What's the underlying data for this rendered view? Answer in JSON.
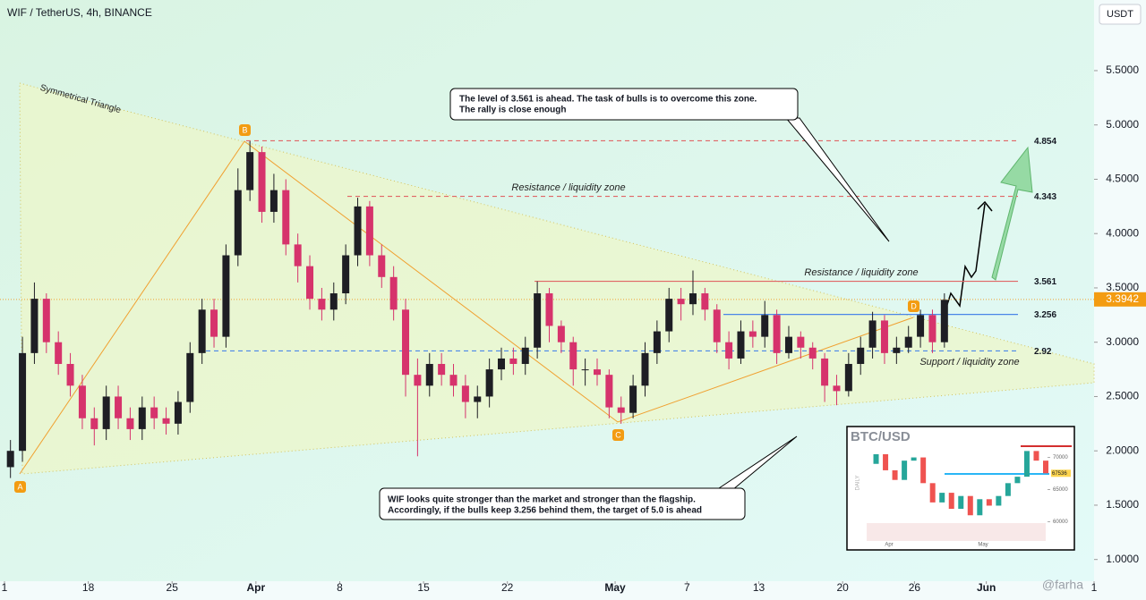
{
  "chart_data": {
    "type": "candlestick",
    "title": "WIF / TetherUS, 4h, BINANCE",
    "currency": "USDT",
    "current_price": 3.3942,
    "x": [
      "Mar 11",
      "Mar 12",
      "Mar 13",
      "Mar 14",
      "Mar 15",
      "Mar 16",
      "Mar 17",
      "Mar 18",
      "Mar 19",
      "Mar 20",
      "Mar 21",
      "Mar 22",
      "Mar 23",
      "Mar 24",
      "Mar 25",
      "Mar 26",
      "Mar 27",
      "Mar 28",
      "Mar 29",
      "Mar 30",
      "Mar 31",
      "Apr 1",
      "Apr 2",
      "Apr 3",
      "Apr 4",
      "Apr 5",
      "Apr 6",
      "Apr 7",
      "Apr 8",
      "Apr 9",
      "Apr 10",
      "Apr 11",
      "Apr 12",
      "Apr 13",
      "Apr 14",
      "Apr 15",
      "Apr 16",
      "Apr 17",
      "Apr 18",
      "Apr 19",
      "Apr 20",
      "Apr 21",
      "Apr 22",
      "Apr 23",
      "Apr 24",
      "Apr 25",
      "Apr 26",
      "Apr 27",
      "Apr 28",
      "Apr 29",
      "Apr 30",
      "May 1",
      "May 2",
      "May 3",
      "May 4",
      "May 5",
      "May 6",
      "May 7",
      "May 8",
      "May 9",
      "May 10",
      "May 11",
      "May 12",
      "May 13",
      "May 14",
      "May 15",
      "May 16",
      "May 17",
      "May 18",
      "May 19",
      "May 20",
      "May 21",
      "May 22",
      "May 23",
      "May 24",
      "May 25",
      "May 26",
      "May 27",
      "May 28"
    ],
    "open": [
      1.85,
      2.0,
      2.9,
      3.4,
      3.0,
      2.8,
      2.6,
      2.3,
      2.2,
      2.5,
      2.3,
      2.2,
      2.4,
      2.3,
      2.25,
      2.45,
      2.9,
      3.3,
      3.05,
      3.8,
      4.4,
      4.75,
      4.2,
      4.4,
      3.9,
      3.7,
      3.4,
      3.3,
      3.45,
      3.8,
      4.25,
      3.8,
      3.6,
      3.3,
      2.7,
      2.6,
      2.8,
      2.7,
      2.6,
      2.45,
      2.5,
      2.75,
      2.85,
      2.8,
      2.95,
      3.45,
      3.15,
      3.0,
      2.75,
      2.75,
      2.7,
      2.4,
      2.35,
      2.6,
      2.9,
      3.1,
      3.4,
      3.35,
      3.45,
      3.3,
      3.0,
      2.85,
      3.1,
      3.05,
      3.25,
      2.9,
      3.05,
      2.95,
      2.85,
      2.6,
      2.55,
      2.8,
      2.95,
      3.2,
      2.9,
      2.95,
      3.05,
      3.25,
      3.0
    ],
    "high": [
      2.1,
      3.05,
      3.55,
      3.45,
      3.1,
      2.9,
      2.7,
      2.4,
      2.6,
      2.6,
      2.4,
      2.5,
      2.5,
      2.4,
      2.55,
      3.0,
      3.4,
      3.4,
      3.9,
      4.6,
      4.85,
      4.8,
      4.55,
      4.5,
      4.0,
      3.8,
      3.5,
      3.55,
      3.9,
      4.33,
      4.3,
      3.9,
      3.7,
      3.4,
      2.85,
      2.9,
      2.9,
      2.8,
      2.7,
      2.6,
      2.85,
      2.95,
      2.95,
      3.05,
      3.56,
      3.5,
      3.2,
      3.05,
      2.85,
      2.85,
      2.75,
      2.5,
      2.7,
      3.0,
      3.2,
      3.5,
      3.5,
      3.66,
      3.5,
      3.35,
      3.1,
      3.2,
      3.2,
      3.38,
      3.3,
      3.15,
      3.1,
      3.0,
      2.9,
      2.7,
      2.9,
      3.05,
      3.28,
      3.25,
      3.05,
      3.15,
      3.3,
      3.3,
      3.45
    ],
    "low": [
      1.75,
      1.9,
      2.8,
      2.9,
      2.7,
      2.5,
      2.2,
      2.05,
      2.1,
      2.2,
      2.1,
      2.1,
      2.2,
      2.15,
      2.15,
      2.35,
      2.8,
      2.95,
      2.95,
      3.7,
      4.3,
      4.1,
      4.1,
      3.8,
      3.55,
      3.3,
      3.2,
      3.2,
      3.35,
      3.7,
      3.7,
      3.5,
      3.2,
      2.5,
      1.95,
      2.5,
      2.6,
      2.5,
      2.3,
      2.3,
      2.4,
      2.65,
      2.7,
      2.7,
      2.85,
      3.0,
      2.9,
      2.6,
      2.6,
      2.6,
      2.3,
      2.25,
      2.3,
      2.5,
      2.8,
      3.0,
      3.2,
      3.25,
      3.2,
      2.9,
      2.75,
      2.8,
      2.95,
      2.95,
      2.8,
      2.85,
      2.85,
      2.75,
      2.45,
      2.42,
      2.5,
      2.7,
      2.85,
      2.8,
      2.8,
      2.9,
      2.95,
      2.9,
      2.95
    ],
    "close": [
      2.0,
      2.9,
      3.4,
      3.0,
      2.8,
      2.6,
      2.3,
      2.2,
      2.5,
      2.3,
      2.2,
      2.4,
      2.3,
      2.25,
      2.45,
      2.9,
      3.3,
      3.05,
      3.8,
      4.4,
      4.75,
      4.2,
      4.4,
      3.9,
      3.7,
      3.4,
      3.3,
      3.45,
      3.8,
      4.25,
      3.8,
      3.6,
      3.3,
      2.7,
      2.6,
      2.8,
      2.7,
      2.6,
      2.45,
      2.5,
      2.75,
      2.85,
      2.8,
      2.95,
      3.45,
      3.15,
      3.0,
      2.75,
      2.75,
      2.7,
      2.4,
      2.35,
      2.6,
      2.9,
      3.1,
      3.4,
      3.35,
      3.45,
      3.3,
      3.0,
      2.85,
      3.1,
      3.05,
      3.25,
      2.9,
      3.05,
      2.95,
      2.85,
      2.6,
      2.55,
      2.8,
      2.95,
      3.2,
      2.9,
      2.95,
      3.05,
      3.25,
      3.0,
      3.39
    ],
    "up_color": "#1e1e24",
    "down_color": "#d6336c",
    "xlim": [
      "Mar 11",
      "Jun 10"
    ],
    "xticks": [
      {
        "value": "Mar 11",
        "label": "1"
      },
      {
        "value": "Mar 18",
        "label": "18"
      },
      {
        "value": "Mar 25",
        "label": "25"
      },
      {
        "value": "Apr 1",
        "label": "Apr"
      },
      {
        "value": "Apr 8",
        "label": "8"
      },
      {
        "value": "Apr 15",
        "label": "15"
      },
      {
        "value": "Apr 22",
        "label": "22"
      },
      {
        "value": "May 1",
        "label": "May"
      },
      {
        "value": "May 7",
        "label": "7"
      },
      {
        "value": "May 13",
        "label": "13"
      },
      {
        "value": "May 20",
        "label": "20"
      },
      {
        "value": "May 26",
        "label": "26"
      },
      {
        "value": "Jun 1",
        "label": "Jun"
      },
      {
        "value": "Jun 10",
        "label": "1"
      }
    ],
    "ylim": [
      0.8,
      6.15
    ],
    "yticks": [
      {
        "value": 1,
        "label": "1.0000"
      },
      {
        "value": 1.5,
        "label": "1.5000"
      },
      {
        "value": 2,
        "label": "2.0000"
      },
      {
        "value": 2.5,
        "label": "2.5000"
      },
      {
        "value": 3,
        "label": "3.0000"
      },
      {
        "value": 3.5,
        "label": "3.5000"
      },
      {
        "value": 4,
        "label": "4.0000"
      },
      {
        "value": 4.5,
        "label": "4.5000"
      },
      {
        "value": 5,
        "label": "5.0000"
      },
      {
        "value": 5.5,
        "label": "5.5000"
      }
    ],
    "levels": [
      {
        "value": 4.854,
        "color": "#e06666",
        "style": "dashed"
      },
      {
        "value": 4.343,
        "color": "#e06666",
        "style": "dashed"
      },
      {
        "value": 3.561,
        "color": "#e06666",
        "style": "solid"
      },
      {
        "value": 3.256,
        "color": "#4a86e8",
        "style": "solid"
      },
      {
        "value": 2.92,
        "color": "#4a86e8",
        "style": "dashed"
      }
    ],
    "annotations": {
      "pattern": "Symmetrical Triangle",
      "resistance_upper": "Resistance / liquidity zone",
      "resistance_lower": "Resistance / liquidity zone",
      "support": "Support / liquidity zone",
      "note_top": [
        "The level of 3.561 is ahead. The task of bulls is to overcome this zone.",
        "The rally is close enough"
      ],
      "note_bottom": [
        "WIF looks quite stronger than the market and stronger than the flagship.",
        "Accordingly, if the bulls keep 3.256 behind them, the target of 5.0 is ahead"
      ],
      "points": [
        "A",
        "B",
        "C",
        "D"
      ],
      "watermark": "@farha"
    },
    "inset": {
      "title": "BTC/USD",
      "axis_label": "DAILY",
      "categories": [
        "Apr",
        "May"
      ],
      "values": [
        69000,
        70500,
        68000,
        66500,
        69500,
        70000,
        66000,
        63000,
        64500,
        62000,
        64000,
        61000,
        63500,
        62500,
        64000,
        66000,
        67000,
        71000,
        69500,
        67536
      ],
      "ylim": [
        57000,
        73000
      ],
      "yticks": [
        60000,
        65000,
        70000
      ]
    }
  }
}
